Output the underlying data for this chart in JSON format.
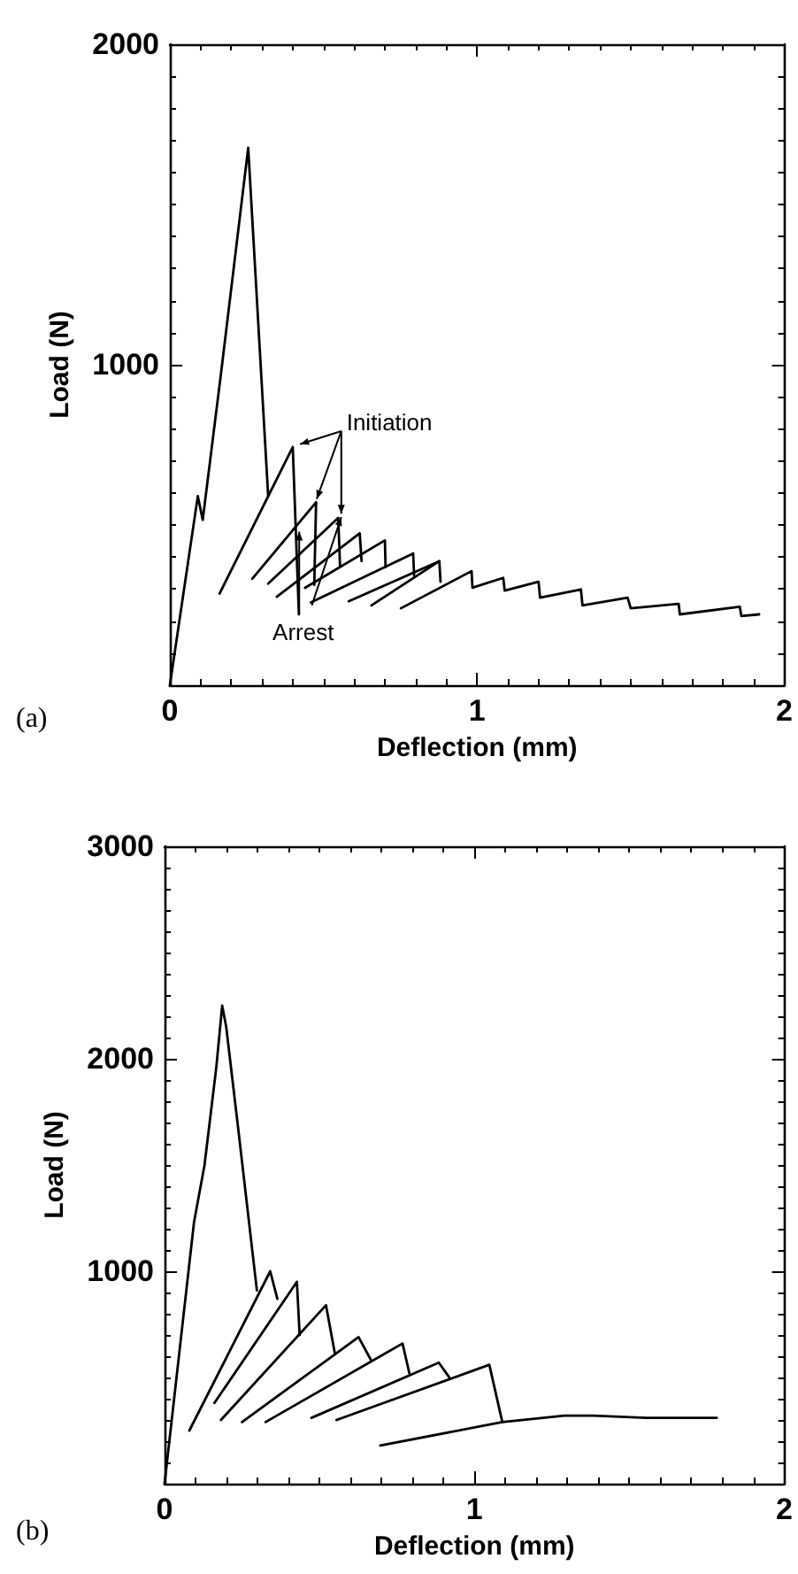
{
  "chart_data": [
    {
      "type": "line",
      "title": "(a)",
      "xlabel": "Deflection (mm)",
      "ylabel": "Load (N)",
      "xlim": [
        0,
        2
      ],
      "ylim": [
        0,
        2000
      ],
      "xticks": [
        0,
        1,
        2
      ],
      "yticks": [
        {
          "value": 0,
          "label": null
        },
        1000,
        2000
      ],
      "grid": false,
      "marker": "none",
      "line_style": "solid",
      "annotations": [
        {
          "text": "Initiation",
          "x": 0.424,
          "y": 752
        },
        {
          "text": "Arrest",
          "x": 0.421,
          "y": 479
        }
      ],
      "series": [
        {
          "color": "#000000",
          "x": [
            0,
            0.091,
            0.107,
            0.167,
            0.255,
            0.32
          ],
          "values": [
            0,
            590,
            516,
            977,
            1677,
            590
          ]
        },
        {
          "color": "#000000",
          "x": [
            0.162,
            0.4,
            0.42
          ],
          "values": [
            286,
            743,
            221
          ]
        },
        {
          "color": "#000000",
          "x": [
            0.268,
            0.476,
            0.47
          ],
          "values": [
            332,
            571,
            313
          ]
        },
        {
          "color": "#000000",
          "x": [
            0.32,
            0.548,
            0.554
          ],
          "values": [
            317,
            522,
            369
          ]
        },
        {
          "color": "#000000",
          "x": [
            0.348,
            0.618,
            0.624
          ],
          "values": [
            276,
            474,
            387
          ]
        },
        {
          "color": "#000000",
          "x": [
            0.44,
            0.7,
            0.702
          ],
          "values": [
            304,
            452,
            369
          ]
        },
        {
          "color": "#000000",
          "x": [
            0.459,
            0.792,
            0.795
          ],
          "values": [
            258,
            411,
            341
          ]
        },
        {
          "color": "#000000",
          "x": [
            0.582,
            0.877,
            0.881
          ],
          "values": [
            262,
            387,
            323
          ]
        },
        {
          "color": "#000000",
          "x": [
            0.656,
            0.877
          ],
          "values": [
            249,
            387
          ]
        },
        {
          "color": "#000000",
          "x": [
            0.752,
            0.982,
            0.985,
            1.085,
            1.09,
            1.2,
            1.205,
            1.338,
            1.343,
            1.49,
            1.5,
            1.656,
            1.66,
            1.855,
            1.86,
            1.918
          ],
          "values": [
            240,
            356,
            304,
            335,
            295,
            323,
            273,
            299,
            249,
            273,
            240,
            254,
            221,
            245,
            216,
            221
          ]
        }
      ]
    },
    {
      "type": "line",
      "title": "(b)",
      "xlabel": "Deflection (mm)",
      "ylabel": "Load (N)",
      "xlim": [
        0,
        2
      ],
      "ylim": [
        0,
        3000
      ],
      "xticks": [
        0,
        1,
        2
      ],
      "yticks": [
        {
          "value": 0,
          "label": null
        },
        1000,
        2000,
        3000
      ],
      "grid": false,
      "marker": "none",
      "line_style": "solid",
      "series": [
        {
          "color": "#000000",
          "x": [
            0,
            0.095,
            0.129,
            0.167,
            0.186,
            0.199,
            0.237,
            0.298
          ],
          "values": [
            0,
            1230,
            1500,
            1960,
            2250,
            2150,
            1680,
            910
          ]
        },
        {
          "color": "#000000",
          "x": [
            0.08,
            0.341,
            0.364
          ],
          "values": [
            250,
            1000,
            870
          ]
        },
        {
          "color": "#000000",
          "x": [
            0.161,
            0.427,
            0.436
          ],
          "values": [
            380,
            950,
            700
          ]
        },
        {
          "color": "#000000",
          "x": [
            0.182,
            0.521,
            0.55
          ],
          "values": [
            300,
            840,
            610
          ]
        },
        {
          "color": "#000000",
          "x": [
            0.25,
            0.626,
            0.667
          ],
          "values": [
            290,
            690,
            580
          ]
        },
        {
          "color": "#000000",
          "x": [
            0.326,
            0.768,
            0.79
          ],
          "values": [
            290,
            660,
            520
          ]
        },
        {
          "color": "#000000",
          "x": [
            0.474,
            0.885,
            0.919
          ],
          "values": [
            310,
            570,
            500
          ]
        },
        {
          "color": "#000000",
          "x": [
            0.555,
            1.048,
            1.09
          ],
          "values": [
            300,
            560,
            290
          ]
        },
        {
          "color": "#000000",
          "x": [
            0.696,
            1.09,
            1.29,
            1.384,
            1.555,
            1.782
          ],
          "values": [
            180,
            290,
            320,
            320,
            310,
            310
          ]
        }
      ]
    }
  ]
}
